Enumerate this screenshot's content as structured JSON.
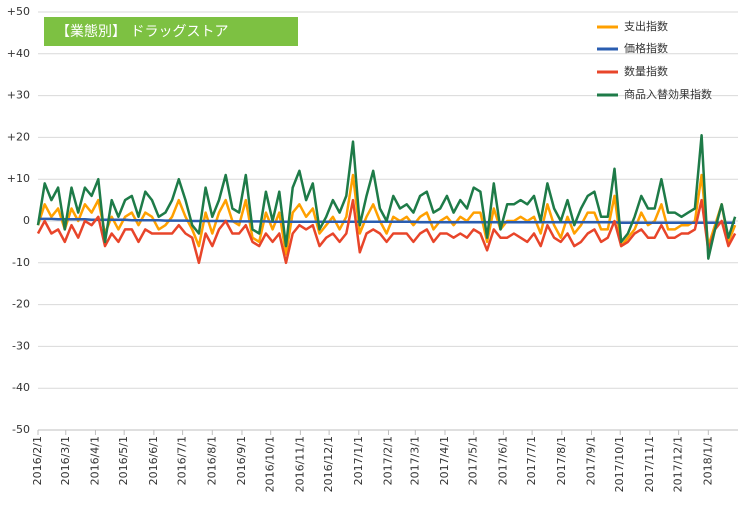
{
  "chart_data": {
    "type": "line",
    "title": "【業態別】 ドラッグストア",
    "x": [
      "2016/2/1",
      "2016/2/8",
      "2016/2/15",
      "2016/2/22",
      "2016/2/29",
      "2016/3/7",
      "2016/3/14",
      "2016/3/21",
      "2016/3/28",
      "2016/4/4",
      "2016/4/11",
      "2016/4/18",
      "2016/4/25",
      "2016/5/2",
      "2016/5/9",
      "2016/5/16",
      "2016/5/23",
      "2016/5/30",
      "2016/6/6",
      "2016/6/13",
      "2016/6/20",
      "2016/6/27",
      "2016/7/4",
      "2016/7/11",
      "2016/7/18",
      "2016/7/25",
      "2016/8/1",
      "2016/8/8",
      "2016/8/15",
      "2016/8/22",
      "2016/8/29",
      "2016/9/5",
      "2016/9/12",
      "2016/9/19",
      "2016/9/26",
      "2016/10/3",
      "2016/10/10",
      "2016/10/17",
      "2016/10/24",
      "2016/10/31",
      "2016/11/7",
      "2016/11/14",
      "2016/11/21",
      "2016/11/28",
      "2016/12/5",
      "2016/12/12",
      "2016/12/19",
      "2016/12/26",
      "2017/1/2",
      "2017/1/9",
      "2017/1/16",
      "2017/1/23",
      "2017/1/30",
      "2017/2/6",
      "2017/2/13",
      "2017/2/20",
      "2017/2/27",
      "2017/3/6",
      "2017/3/13",
      "2017/3/20",
      "2017/3/27",
      "2017/4/3",
      "2017/4/10",
      "2017/4/17",
      "2017/4/24",
      "2017/5/1",
      "2017/5/8",
      "2017/5/15",
      "2017/5/22",
      "2017/5/29",
      "2017/6/5",
      "2017/6/12",
      "2017/6/19",
      "2017/6/26",
      "2017/7/3",
      "2017/7/10",
      "2017/7/17",
      "2017/7/24",
      "2017/7/31",
      "2017/8/7",
      "2017/8/14",
      "2017/8/21",
      "2017/8/28",
      "2017/9/4",
      "2017/9/11",
      "2017/9/18",
      "2017/9/25",
      "2017/10/2",
      "2017/10/9",
      "2017/10/16",
      "2017/10/23",
      "2017/10/30",
      "2017/11/6",
      "2017/11/13",
      "2017/11/20",
      "2017/11/27",
      "2017/12/4",
      "2017/12/11",
      "2017/12/18",
      "2017/12/25",
      "2018/1/1",
      "2018/1/8",
      "2018/1/15",
      "2018/1/22",
      "2018/1/29"
    ],
    "xlim": [
      "2016/2/1",
      "2018/2/1"
    ],
    "xticks": [
      "2016/2/1",
      "2016/3/1",
      "2016/4/1",
      "2016/5/1",
      "2016/6/1",
      "2016/7/1",
      "2016/8/1",
      "2016/9/1",
      "2016/10/1",
      "2016/11/1",
      "2016/12/1",
      "2017/1/1",
      "2017/2/1",
      "2017/3/1",
      "2017/4/1",
      "2017/5/1",
      "2017/6/1",
      "2017/7/1",
      "2017/8/1",
      "2017/9/1",
      "2017/10/1",
      "2017/11/1",
      "2017/12/1",
      "2018/1/1"
    ],
    "ylim": [
      -50,
      50
    ],
    "yticks": [
      {
        "value": 50,
        "label": "+50"
      },
      {
        "value": 40,
        "label": "+40"
      },
      {
        "value": 30,
        "label": "+30"
      },
      {
        "value": 20,
        "label": "+20"
      },
      {
        "value": 10,
        "label": "+10"
      },
      0,
      -10,
      -20,
      -30,
      -40,
      -50
    ],
    "grid": true,
    "legend": "upper right",
    "series": [
      {
        "name": "支出指数",
        "color": "#ffa000",
        "values": [
          -1,
          4,
          1,
          3,
          -2,
          3,
          0,
          4,
          2,
          5,
          -3,
          1,
          -2,
          1,
          2,
          -1,
          2,
          1,
          -2,
          -1,
          1,
          5,
          1,
          -2,
          -6,
          2,
          -3,
          2,
          5,
          0,
          -1,
          5,
          -4,
          -5,
          2,
          -2,
          2,
          -8,
          2,
          4,
          1,
          3,
          -3,
          -1,
          1,
          -2,
          1,
          11,
          -3,
          1,
          4,
          0,
          -3,
          1,
          0,
          1,
          -1,
          1,
          2,
          -2,
          0,
          1,
          -1,
          1,
          0,
          2,
          2,
          -5,
          3,
          -2,
          0,
          0,
          1,
          0,
          1,
          -3,
          4,
          -1,
          -4,
          1,
          -3,
          -1,
          2,
          2,
          -2,
          -2,
          6,
          -6,
          -4,
          -2,
          2,
          -1,
          0,
          4,
          -2,
          -2,
          -1,
          -1,
          0,
          11,
          -6,
          -1,
          4,
          -5,
          -1
        ]
      },
      {
        "name": "価格指数",
        "color": "#2a5db0",
        "values": [
          0.5,
          0.5,
          0.5,
          0.4,
          0.4,
          0.4,
          0.4,
          0.4,
          0.3,
          0.3,
          0.3,
          0.3,
          0.3,
          0.3,
          0.2,
          0.2,
          0.2,
          0.2,
          0.2,
          0.1,
          0.1,
          0.1,
          0.1,
          0,
          0,
          0,
          0,
          0,
          0,
          -0.1,
          -0.1,
          -0.1,
          -0.1,
          -0.1,
          -0.1,
          -0.2,
          -0.2,
          -0.2,
          -0.2,
          -0.2,
          -0.2,
          -0.2,
          -0.2,
          -0.2,
          -0.2,
          -0.2,
          -0.2,
          -0.2,
          -0.2,
          -0.2,
          -0.2,
          -0.2,
          -0.2,
          -0.2,
          -0.2,
          -0.2,
          -0.2,
          -0.3,
          -0.3,
          -0.3,
          -0.3,
          -0.3,
          -0.3,
          -0.3,
          -0.3,
          -0.3,
          -0.3,
          -0.3,
          -0.3,
          -0.3,
          -0.3,
          -0.3,
          -0.3,
          -0.3,
          -0.3,
          -0.3,
          -0.3,
          -0.3,
          -0.3,
          -0.3,
          -0.3,
          -0.3,
          -0.3,
          -0.3,
          -0.3,
          -0.3,
          -0.3,
          -0.4,
          -0.4,
          -0.4,
          -0.4,
          -0.4,
          -0.4,
          -0.4,
          -0.4,
          -0.4,
          -0.4,
          -0.4,
          -0.4,
          -0.4,
          -0.4,
          -0.4,
          -0.4,
          -0.4,
          -0.4
        ]
      },
      {
        "name": "数量指数",
        "color": "#e8452a",
        "values": [
          -3,
          0,
          -3,
          -2,
          -5,
          -1,
          -4,
          0,
          -1,
          1,
          -6,
          -3,
          -5,
          -2,
          -2,
          -5,
          -2,
          -3,
          -3,
          -3,
          -3,
          -1,
          -3,
          -4,
          -10,
          -3,
          -6,
          -2,
          0,
          -3,
          -3,
          -1,
          -5,
          -6,
          -3,
          -5,
          -3,
          -10,
          -3,
          -1,
          -2,
          -1,
          -6,
          -4,
          -3,
          -5,
          -3,
          5,
          -7.5,
          -3,
          -2,
          -3,
          -5,
          -3,
          -3,
          -3,
          -5,
          -3,
          -2,
          -5,
          -3,
          -3,
          -4,
          -3,
          -4,
          -2,
          -3,
          -7,
          -2,
          -4,
          -4,
          -3,
          -4,
          -5,
          -3,
          -6,
          -1,
          -4,
          -5,
          -3,
          -6,
          -5,
          -3,
          -2,
          -5,
          -4,
          0,
          -6,
          -5,
          -3,
          -2,
          -4,
          -4,
          -1,
          -4,
          -4,
          -3,
          -3,
          -2,
          5,
          -7,
          -2,
          0,
          -6,
          -3
        ]
      },
      {
        "name": "商品入替効果指数",
        "color": "#1e7b48",
        "values": [
          -1,
          9,
          5,
          8,
          -2,
          8,
          2,
          8,
          6,
          10,
          -5,
          5,
          1,
          5,
          6,
          1,
          7,
          5,
          1,
          2,
          5,
          10,
          5,
          -1,
          -3,
          8,
          1,
          5,
          11,
          3,
          2,
          11,
          -2,
          -3,
          7,
          0,
          7,
          -6,
          8,
          12,
          5,
          9,
          -2,
          1,
          5,
          2,
          6,
          19,
          -1,
          6,
          12,
          3,
          0,
          6,
          3,
          4,
          2,
          6,
          7,
          2,
          3,
          6,
          2,
          5,
          3,
          8,
          7,
          -4,
          9,
          -2,
          4,
          4,
          5,
          4,
          6,
          0,
          9,
          3,
          0,
          5,
          -1,
          3,
          6,
          7,
          1,
          1,
          12.5,
          -5,
          -3,
          1,
          6,
          3,
          3,
          10,
          2,
          2,
          1,
          2,
          3,
          20.5,
          -9,
          -2,
          4,
          -4,
          1
        ]
      }
    ]
  }
}
